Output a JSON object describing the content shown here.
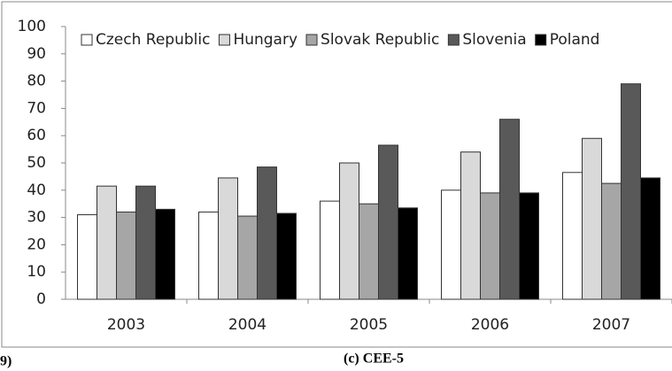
{
  "chart_data": {
    "type": "bar",
    "categories": [
      "2003",
      "2004",
      "2005",
      "2006",
      "2007"
    ],
    "series": [
      {
        "name": "Czech Republic",
        "color": "#ffffff",
        "values": [
          31,
          32,
          36,
          40,
          46.5
        ]
      },
      {
        "name": "Hungary",
        "color": "#d9d9d9",
        "values": [
          41.5,
          44.5,
          50,
          54,
          59
        ]
      },
      {
        "name": "Slovak Republic",
        "color": "#a6a6a6",
        "values": [
          32,
          30.5,
          35,
          39,
          42.5
        ]
      },
      {
        "name": "Slovenia",
        "color": "#595959",
        "values": [
          41.5,
          48.5,
          56.5,
          66,
          79
        ]
      },
      {
        "name": "Poland",
        "color": "#000000",
        "values": [
          33,
          31.5,
          33.5,
          39,
          44.5
        ]
      }
    ],
    "ylim": [
      0,
      100
    ],
    "yticks": [
      0,
      10,
      20,
      30,
      40,
      50,
      60,
      70,
      80,
      90,
      100
    ],
    "caption": "(c) CEE-5",
    "left_caption_fragment": "9)"
  },
  "legend": "top"
}
